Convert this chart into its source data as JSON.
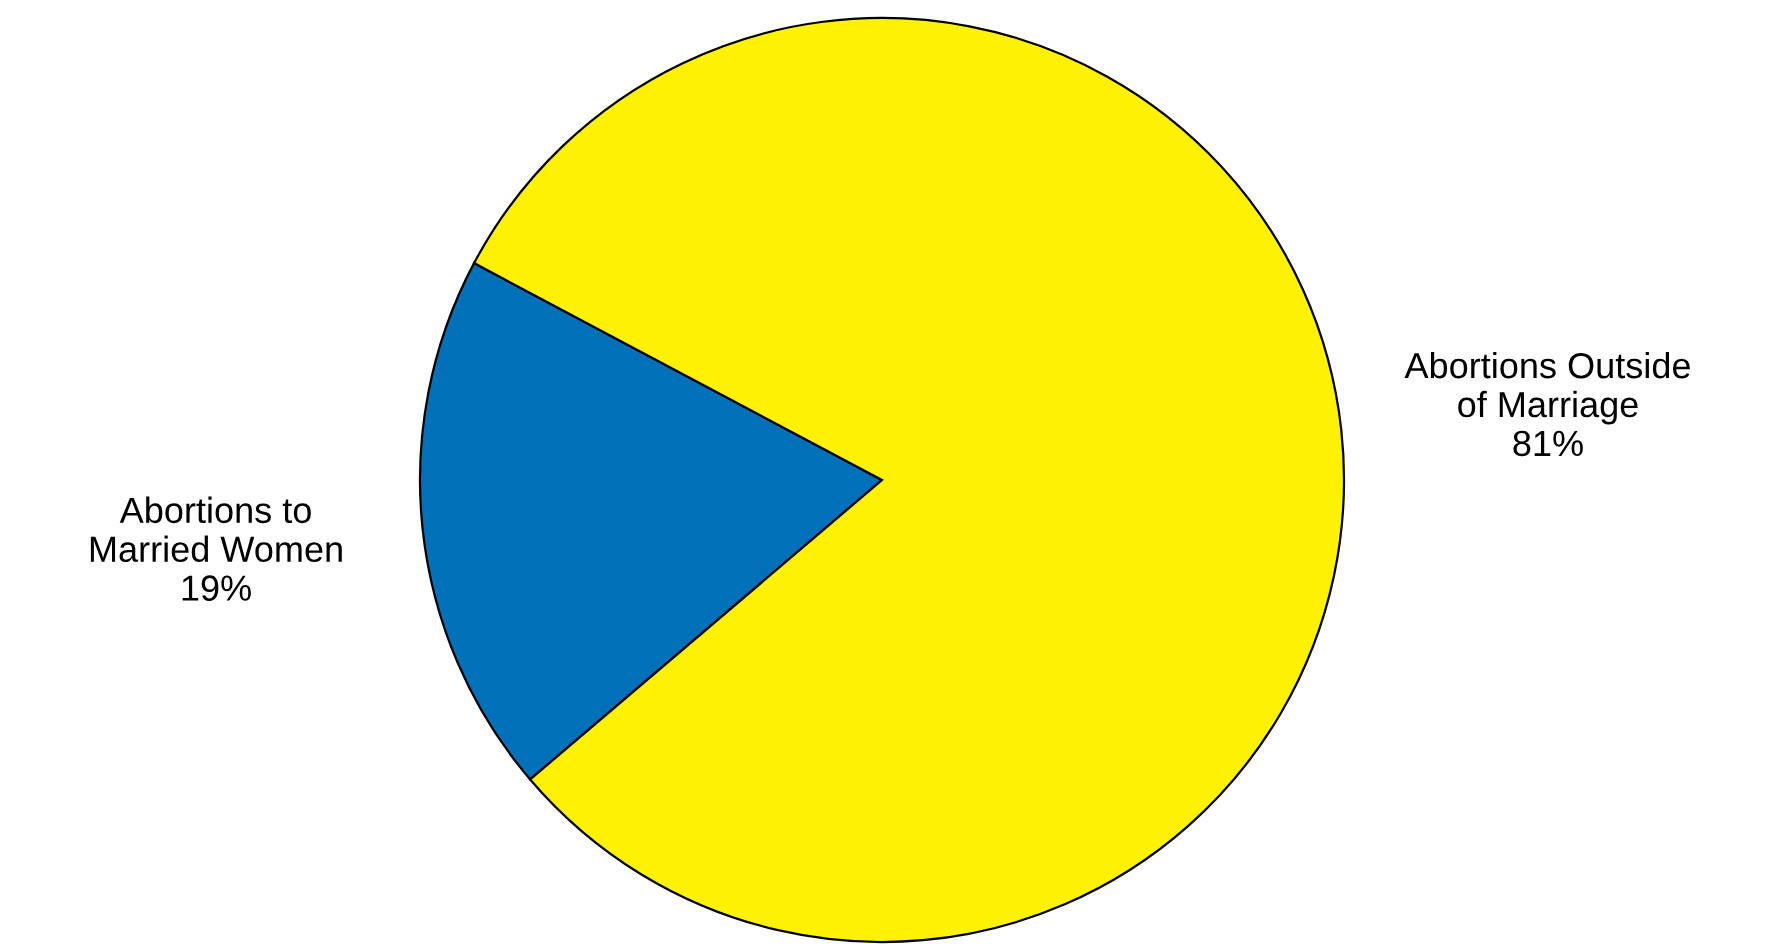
{
  "chart_data": {
    "type": "pie",
    "categories": [
      "Abortions to\nMarried Women",
      "Abortions Outside\nof Marriage"
    ],
    "values": [
      19,
      81
    ],
    "value_labels": [
      "19%",
      "81%"
    ],
    "colors": [
      "#0070b8",
      "#fff200"
    ]
  }
}
